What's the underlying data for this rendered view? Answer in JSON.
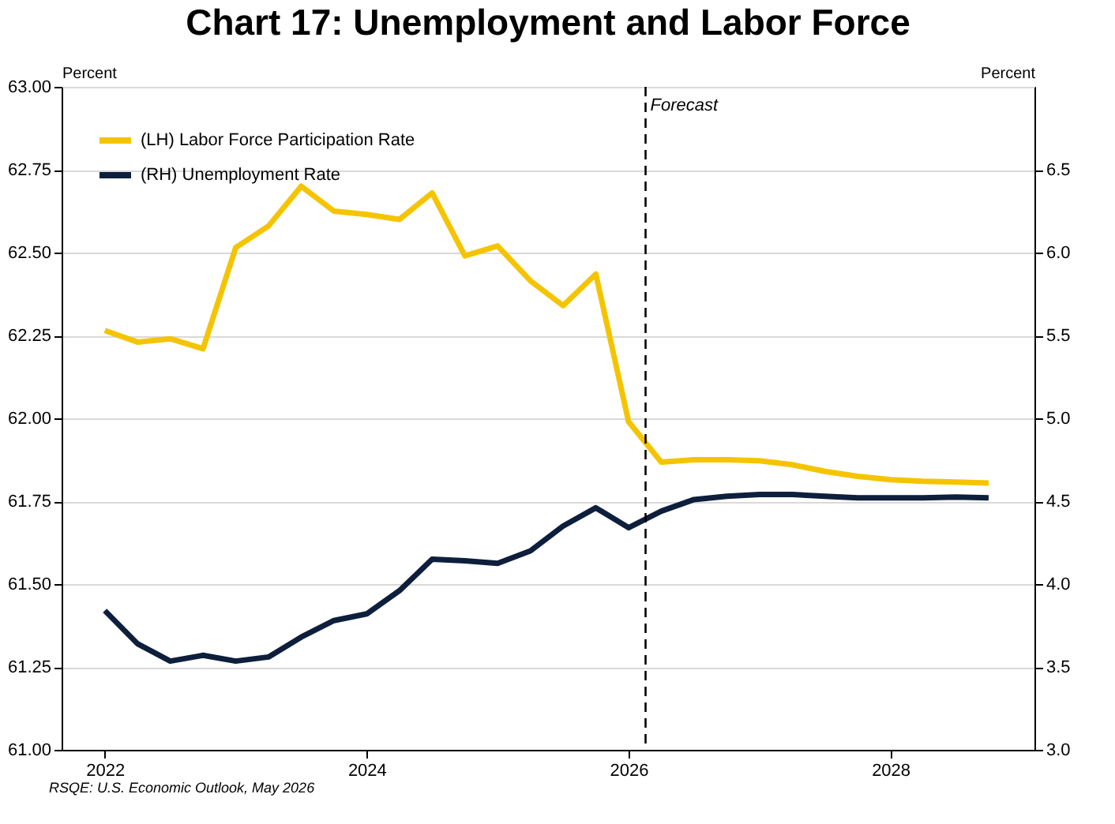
{
  "chart_data": {
    "type": "line",
    "title": "Chart 17: Unemployment and Labor Force",
    "ylabel": "Percent",
    "y2label": "Percent",
    "x": [
      2022,
      2022.25,
      2022.5,
      2022.75,
      2023,
      2023.25,
      2023.5,
      2023.75,
      2024,
      2024.25,
      2024.5,
      2024.75,
      2025,
      2025.25,
      2025.5,
      2025.75,
      2026,
      2026.25,
      2026.5,
      2026.75,
      2027,
      2027.25,
      2027.5,
      2027.75,
      2028,
      2028.25,
      2028.5,
      2028.75
    ],
    "series": [
      {
        "name": "(LH) Labor Force Participation Rate",
        "color": "#f5c400",
        "axis": "y",
        "values": [
          62.265,
          62.23,
          62.24,
          62.21,
          62.515,
          62.58,
          62.7,
          62.625,
          62.615,
          62.6,
          62.68,
          62.49,
          62.52,
          62.415,
          62.34,
          62.435,
          61.99,
          61.868,
          61.875,
          61.875,
          61.872,
          61.86,
          61.84,
          61.825,
          61.815,
          61.81,
          61.808,
          61.805
        ]
      },
      {
        "name": "(RH) Unemployment Rate",
        "color": "#0d1f3c",
        "axis": "y2",
        "values": [
          3.84,
          3.64,
          3.535,
          3.57,
          3.535,
          3.56,
          3.68,
          3.78,
          3.82,
          3.96,
          4.15,
          4.14,
          4.125,
          4.2,
          4.35,
          4.46,
          4.34,
          4.44,
          4.51,
          4.53,
          4.54,
          4.54,
          4.53,
          4.52,
          4.52,
          4.52,
          4.525,
          4.52
        ]
      }
    ],
    "xlim": [
      2021.67,
      2029.1
    ],
    "xticks": [
      2022,
      2024,
      2026,
      2028
    ],
    "ylim": [
      61,
      63
    ],
    "yticks": [
      {
        "value": 61,
        "label": "61.00"
      },
      {
        "value": 61.25,
        "label": "61.25"
      },
      {
        "value": 61.5,
        "label": "61.50"
      },
      {
        "value": 61.75,
        "label": "61.75"
      },
      {
        "value": 62,
        "label": "62.00"
      },
      {
        "value": 62.25,
        "label": "62.25"
      },
      {
        "value": 62.5,
        "label": "62.50"
      },
      {
        "value": 62.75,
        "label": "62.75"
      },
      {
        "value": 63,
        "label": "63.00"
      }
    ],
    "y2lim": [
      3,
      7
    ],
    "y2ticks": [
      {
        "value": 3,
        "label": "3.0"
      },
      {
        "value": 3.5,
        "label": "3.5"
      },
      {
        "value": 4,
        "label": "4.0"
      },
      {
        "value": 4.5,
        "label": "4.5"
      },
      {
        "value": 5,
        "label": "5.0"
      },
      {
        "value": 5.5,
        "label": "5.5"
      },
      {
        "value": 6,
        "label": "6.0"
      },
      {
        "value": 6.5,
        "label": "6.5"
      }
    ],
    "ref_lines": [
      {
        "axis": "x",
        "value": 2026.13,
        "label": "Forecast",
        "color": "#000000",
        "line_style": "dashed"
      }
    ],
    "annotations": [
      "RSQE: U.S. Economic Outlook, May 2026"
    ],
    "grid": "y",
    "legend": "top left",
    "line_style": "solid",
    "marker": "none"
  }
}
